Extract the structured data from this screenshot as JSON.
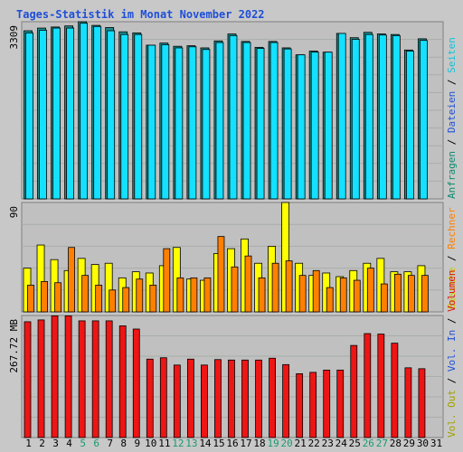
{
  "title": "Tages-Statistik im Monat November 2022",
  "colors": {
    "frame_bg": "#c8c8c8",
    "panel_bg": "#c0c0c0",
    "grid": "#9aa09a",
    "title": "#1f4fd8",
    "weekday_label": "#000000",
    "weekend_label": "#199a70",
    "anfragen": "#0b8a6f",
    "dateien": "#1c4fd6",
    "seiten": "#12c2d9",
    "besuche": "#f2f200",
    "rechner": "#ff7f00",
    "vol_out": "#a0a000",
    "vol_in": "#1f4fd8",
    "volumen": "#e01010",
    "bar_anfragen": "#1e8f8f",
    "bar_dateien": "#14e0ff",
    "bar_besuche": "#ffff00",
    "bar_rechner": "#ff8000",
    "bar_volumen": "#ee1515"
  },
  "labels": {
    "top_ymax": "3309",
    "mid_ymax": "90",
    "bot_ymax": "267.72 MB",
    "right_top": [
      {
        "text": "Anfragen",
        "color": "#0b8a6f"
      },
      {
        "text": " / ",
        "color": "#000000"
      },
      {
        "text": "Dateien",
        "color": "#1c4fd6"
      },
      {
        "text": " / ",
        "color": "#000000"
      },
      {
        "text": "Seiten",
        "color": "#12c2d9"
      }
    ],
    "right_mid": [
      {
        "text": "Besuche",
        "color": "#c8c800"
      },
      {
        "text": " / ",
        "color": "#000000"
      },
      {
        "text": "Rechner",
        "color": "#ff7f00"
      }
    ],
    "right_bot": [
      {
        "text": "Vol. Out",
        "color": "#a0a000"
      },
      {
        "text": " / ",
        "color": "#000000"
      },
      {
        "text": "Vol. In",
        "color": "#1f4fd8"
      },
      {
        "text": " / ",
        "color": "#000000"
      },
      {
        "text": "Volumen",
        "color": "#e01010"
      }
    ]
  },
  "chart_data": {
    "type": "bar",
    "title": "Tages-Statistik im Monat November 2022",
    "days": [
      "1",
      "2",
      "3",
      "4",
      "5",
      "6",
      "7",
      "8",
      "9",
      "10",
      "11",
      "12",
      "13",
      "14",
      "15",
      "16",
      "17",
      "18",
      "19",
      "20",
      "21",
      "22",
      "23",
      "24",
      "25",
      "26",
      "27",
      "28",
      "29",
      "30",
      "31"
    ],
    "weekend_days": [
      "5",
      "6",
      "12",
      "13",
      "19",
      "20",
      "26",
      "27"
    ],
    "panels": [
      {
        "name": "Anfragen / Dateien / Seiten",
        "ymax": 3309,
        "series": [
          {
            "name": "Anfragen",
            "values": [
              3140,
              3190,
              3210,
              3230,
              3309,
              3240,
              3200,
              3120,
              3100,
              2870,
              2910,
              2850,
              2860,
              2820,
              2950,
              3080,
              2940,
              2830,
              2940,
              2820,
              2690,
              2760,
              2740,
              3090,
              3010,
              3110,
              3080,
              3070,
              2780,
              2990,
              null
            ]
          },
          {
            "name": "Dateien",
            "values": [
              3100,
              3150,
              3190,
              3190,
              3280,
              3220,
              3140,
              3070,
              3070,
              2870,
              2880,
              2820,
              2840,
              2790,
              2920,
              3050,
              2920,
              2810,
              2920,
              2800,
              2690,
              2740,
              2740,
              3090,
              2980,
              3070,
              3060,
              3050,
              2760,
              2960,
              null
            ]
          }
        ]
      },
      {
        "name": "Besuche / Rechner",
        "ymax": 90,
        "series": [
          {
            "name": "Besuche",
            "values": [
              36,
              55,
              43,
              34,
              44,
              39,
              40,
              28,
              33,
              32,
              38,
              53,
              27,
              26,
              48,
              52,
              60,
              40,
              54,
              90,
              40,
              30,
              32,
              29,
              34,
              40,
              44,
              33,
              33,
              38,
              null
            ]
          },
          {
            "name": "Rechner",
            "values": [
              22,
              25,
              24,
              53,
              30,
              22,
              18,
              20,
              27,
              22,
              52,
              28,
              28,
              28,
              62,
              37,
              46,
              28,
              40,
              42,
              30,
              34,
              20,
              28,
              26,
              36,
              23,
              31,
              30,
              30,
              null
            ]
          }
        ]
      },
      {
        "name": "Volumen",
        "ymax_label": "267.72 MB",
        "ymax": 267.72,
        "series": [
          {
            "name": "Volumen",
            "values": [
              254,
              258,
              267,
              267,
              256,
              256,
              256,
              245,
              238,
              172,
              175,
              159,
              172,
              159,
              171,
              170,
              170,
              170,
              174,
              160,
              140,
              143,
              148,
              148,
              202,
              228,
              227,
              207,
              153,
              151,
              null
            ]
          }
        ]
      }
    ]
  }
}
